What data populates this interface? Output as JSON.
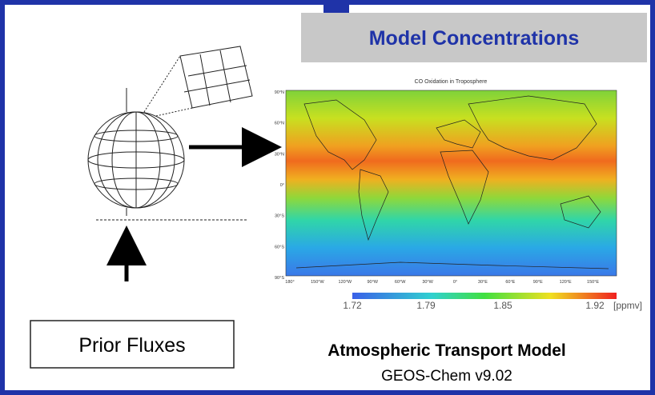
{
  "header": {
    "title": "Model Concentrations"
  },
  "map": {
    "title": "CO Oxidation in Troposphere",
    "lat_labels": [
      "90°N",
      "60°N",
      "30°N",
      "0°",
      "30°S",
      "60°S",
      "90°S"
    ],
    "lon_labels": [
      "180°",
      "150°W",
      "120°W",
      "90°W",
      "60°W",
      "30°W",
      "0°",
      "30°E",
      "60°E",
      "90°E",
      "120°E",
      "150°E"
    ],
    "colorbar": {
      "ticks": [
        "1.72",
        "1.79",
        "1.85",
        "1.92"
      ],
      "unit": "[ppmv]"
    }
  },
  "input": {
    "label": "Prior Fluxes"
  },
  "model": {
    "name": "Atmospheric Transport Model",
    "version": "GEOS-Chem v9.02"
  }
}
